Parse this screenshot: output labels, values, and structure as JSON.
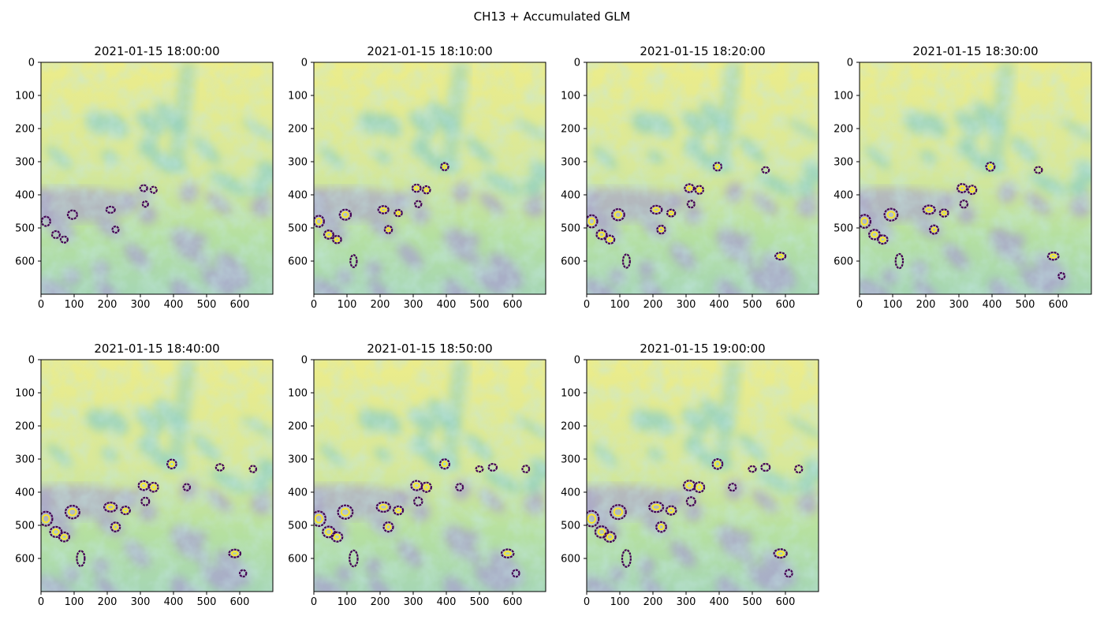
{
  "figure": {
    "suptitle": "CH13 + Accumulated GLM"
  },
  "chart_data": [
    {
      "type": "heatmap",
      "title": "2021-01-15 18:00:00",
      "xlim": [
        0,
        700
      ],
      "ylim": [
        700,
        0
      ],
      "xticks": [
        0,
        100,
        200,
        300,
        400,
        500,
        600
      ],
      "yticks": [
        0,
        100,
        200,
        300,
        400,
        500,
        600
      ],
      "colormap": "viridis",
      "intensity": 1.0
    },
    {
      "type": "heatmap",
      "title": "2021-01-15 18:10:00",
      "xlim": [
        0,
        700
      ],
      "ylim": [
        700,
        0
      ],
      "xticks": [
        0,
        100,
        200,
        300,
        400,
        500,
        600
      ],
      "yticks": [
        0,
        100,
        200,
        300,
        400,
        500,
        600
      ],
      "colormap": "viridis",
      "intensity": 2.0
    },
    {
      "type": "heatmap",
      "title": "2021-01-15 18:20:00",
      "xlim": [
        0,
        700
      ],
      "ylim": [
        700,
        0
      ],
      "xticks": [
        0,
        100,
        200,
        300,
        400,
        500,
        600
      ],
      "yticks": [
        0,
        100,
        200,
        300,
        400,
        500,
        600
      ],
      "colormap": "viridis",
      "intensity": 2.6
    },
    {
      "type": "heatmap",
      "title": "2021-01-15 18:30:00",
      "xlim": [
        0,
        700
      ],
      "ylim": [
        700,
        0
      ],
      "xticks": [
        0,
        100,
        200,
        300,
        400,
        500,
        600
      ],
      "yticks": [
        0,
        100,
        200,
        300,
        400,
        500,
        600
      ],
      "colormap": "viridis",
      "intensity": 3.0
    },
    {
      "type": "heatmap",
      "title": "2021-01-15 18:40:00",
      "xlim": [
        0,
        700
      ],
      "ylim": [
        700,
        0
      ],
      "xticks": [
        0,
        100,
        200,
        300,
        400,
        500,
        600
      ],
      "yticks": [
        0,
        100,
        200,
        300,
        400,
        500,
        600
      ],
      "colormap": "viridis",
      "intensity": 3.5
    },
    {
      "type": "heatmap",
      "title": "2021-01-15 18:50:00",
      "xlim": [
        0,
        700
      ],
      "ylim": [
        700,
        0
      ],
      "xticks": [
        0,
        100,
        200,
        300,
        400,
        500,
        600
      ],
      "yticks": [
        0,
        100,
        200,
        300,
        400,
        500,
        600
      ],
      "colormap": "viridis",
      "intensity": 3.9
    },
    {
      "type": "heatmap",
      "title": "2021-01-15 19:00:00",
      "xlim": [
        0,
        700
      ],
      "ylim": [
        700,
        0
      ],
      "xticks": [
        0,
        100,
        200,
        300,
        400,
        500,
        600
      ],
      "yticks": [
        0,
        100,
        200,
        300,
        400,
        500,
        600
      ],
      "colormap": "viridis",
      "intensity": 4.3
    }
  ],
  "storm_cells": [
    {
      "x": 15,
      "y": 480,
      "rx": 18,
      "ry": 20
    },
    {
      "x": 45,
      "y": 520,
      "rx": 16,
      "ry": 14
    },
    {
      "x": 95,
      "y": 460,
      "rx": 20,
      "ry": 18
    },
    {
      "x": 70,
      "y": 535,
      "rx": 14,
      "ry": 12
    },
    {
      "x": 210,
      "y": 445,
      "rx": 18,
      "ry": 12
    },
    {
      "x": 225,
      "y": 505,
      "rx": 12,
      "ry": 12
    },
    {
      "x": 310,
      "y": 380,
      "rx": 14,
      "ry": 12
    },
    {
      "x": 340,
      "y": 385,
      "rx": 12,
      "ry": 12
    },
    {
      "x": 315,
      "y": 428,
      "rx": 10,
      "ry": 10
    },
    {
      "x": 395,
      "y": 315,
      "rx": 12,
      "ry": 12
    },
    {
      "x": 120,
      "y": 600,
      "rx": 10,
      "ry": 22
    },
    {
      "x": 255,
      "y": 455,
      "rx": 12,
      "ry": 10
    },
    {
      "x": 585,
      "y": 585,
      "rx": 16,
      "ry": 10
    },
    {
      "x": 540,
      "y": 325,
      "rx": 10,
      "ry": 8
    },
    {
      "x": 610,
      "y": 645,
      "rx": 8,
      "ry": 8
    },
    {
      "x": 440,
      "y": 385,
      "rx": 8,
      "ry": 8
    },
    {
      "x": 640,
      "y": 330,
      "rx": 8,
      "ry": 8
    },
    {
      "x": 500,
      "y": 330,
      "rx": 8,
      "ry": 6
    }
  ],
  "colors": {
    "bright": "#ecec8a",
    "mid": "#b5e0a0",
    "cyan": "#8dcfc6",
    "purple": "#a9a1cf",
    "contour_dark": "#440154",
    "contour_bright": "#fde725"
  }
}
